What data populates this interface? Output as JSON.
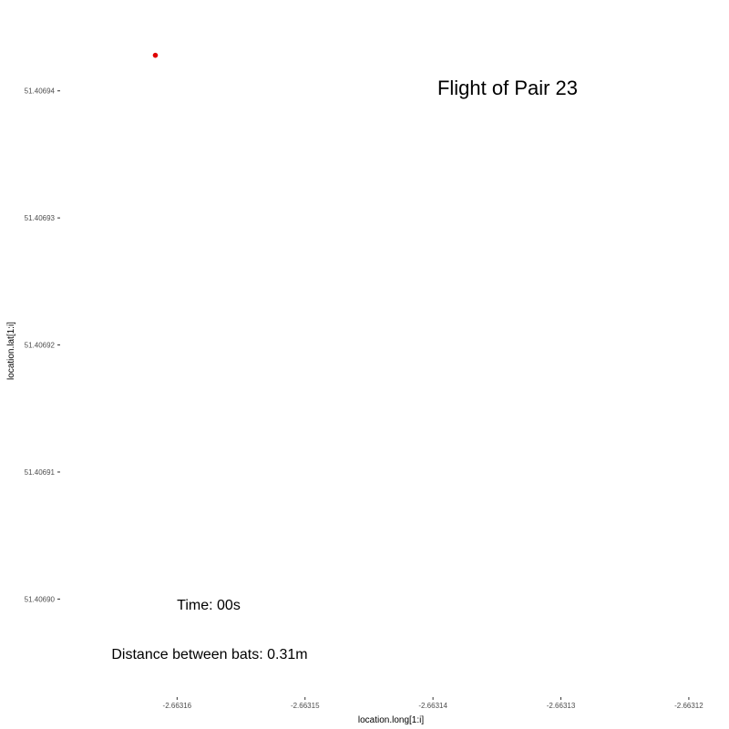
{
  "chart_data": {
    "type": "scatter",
    "title": "",
    "xlabel": "location.long[1:i]",
    "ylabel": "location.lat[1:i]",
    "xlim": [
      -2.663169,
      -2.663118
    ],
    "ylim": [
      51.406893,
      51.406945
    ],
    "x_ticks": [
      -2.66316,
      -2.66315,
      -2.66314,
      -2.66313,
      -2.66312
    ],
    "x_tick_labels": [
      "-2.66316",
      "-2.66315",
      "-2.66314",
      "-2.66313",
      "-2.66312"
    ],
    "y_ticks": [
      51.4069,
      51.40691,
      51.40692,
      51.40693,
      51.40694
    ],
    "y_tick_labels": [
      "51.40690",
      "51.40691",
      "51.40692",
      "51.40693",
      "51.40694"
    ],
    "grid": false,
    "points": [
      {
        "x": -2.6631617,
        "y": 51.4069428,
        "color": "#e00000"
      }
    ],
    "annotations": {
      "title": "Flight of Pair 23",
      "time": "Time: 00s",
      "distance": "Distance between bats: 0.31m"
    }
  }
}
